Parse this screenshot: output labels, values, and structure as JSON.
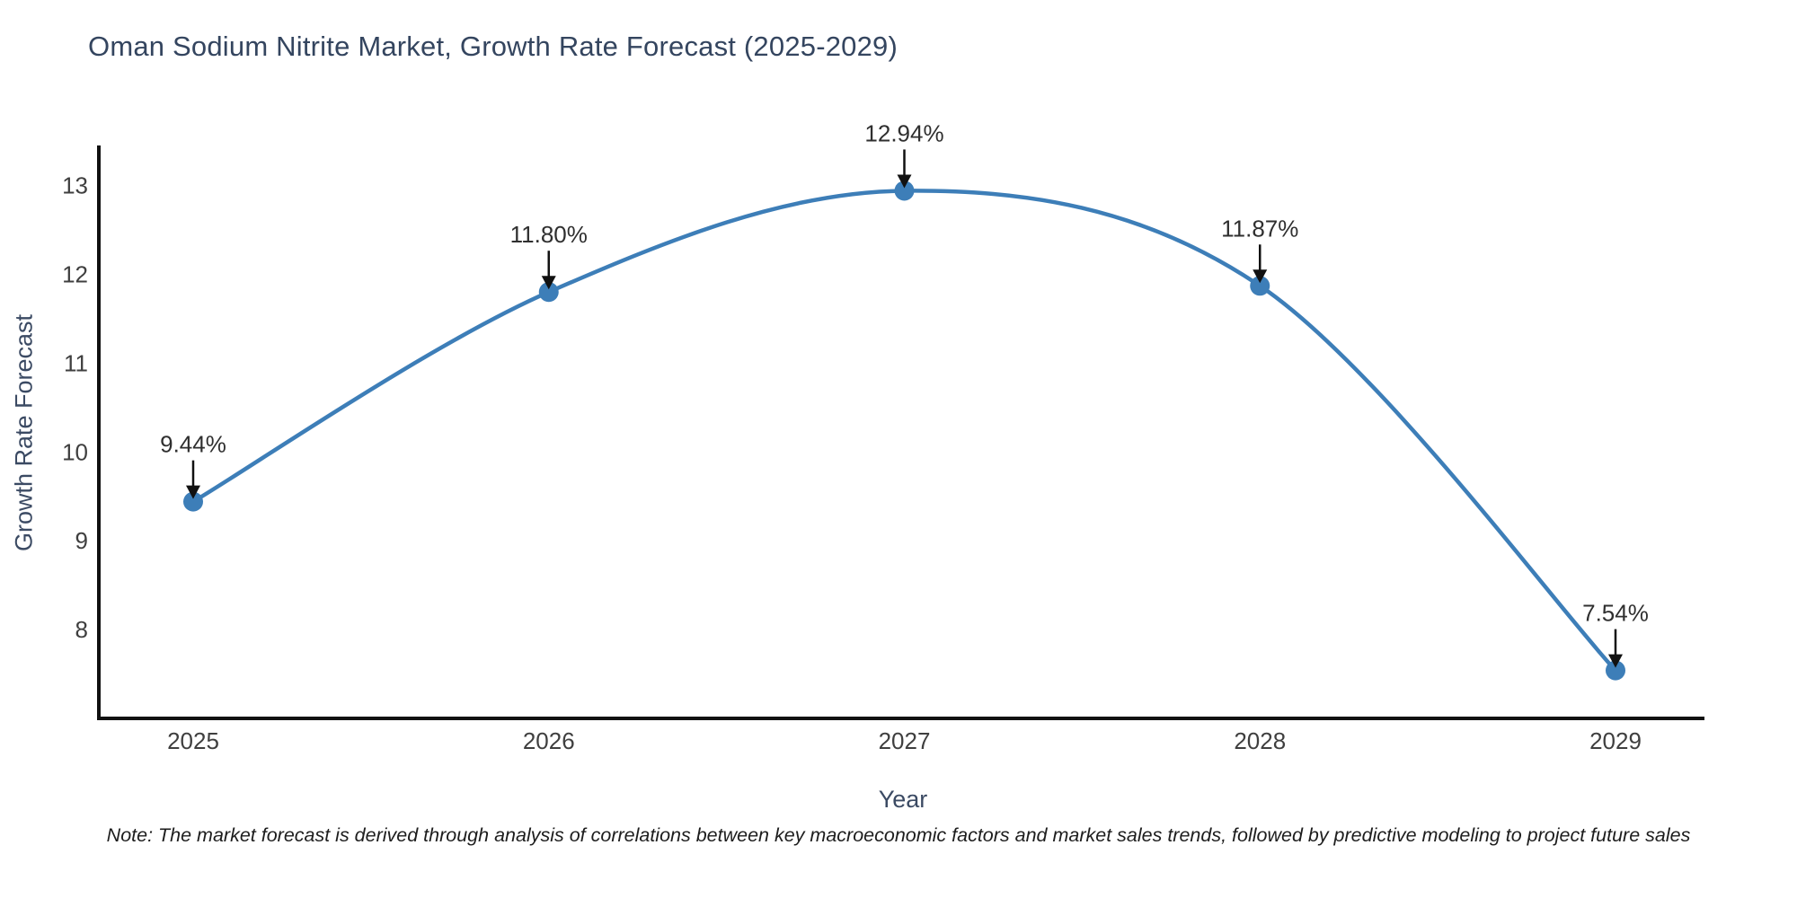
{
  "title": "Oman Sodium Nitrite Market, Growth Rate Forecast (2025-2029)",
  "footnote": "Note: The market forecast is derived through analysis of correlations between key macroeconomic factors and market sales trends, followed by predictive modeling to project future sales",
  "chart_data": {
    "type": "line",
    "title": "Oman Sodium Nitrite Market, Growth Rate Forecast (2025-2029)",
    "xlabel": "Year",
    "ylabel": "Growth Rate Forecast",
    "categories": [
      "2025",
      "2026",
      "2027",
      "2028",
      "2029"
    ],
    "values": [
      9.44,
      11.8,
      12.94,
      11.87,
      7.54
    ],
    "point_labels": [
      "9.44%",
      "11.80%",
      "12.94%",
      "11.87%",
      "7.54%"
    ],
    "yticks": [
      8,
      9,
      10,
      11,
      12,
      13
    ],
    "ylim": [
      7.0,
      13.45
    ],
    "grid": false,
    "legend_position": "none",
    "smooth": true,
    "annotations": "value labels with downward arrows at each point",
    "colors": {
      "line": "#3d7eb8",
      "marker": "#3d7eb8",
      "axis": "#111111",
      "tick_label": "#3f3f3f",
      "annotation_text": "#2f2f2f",
      "arrow": "#111111",
      "title": "#34455f",
      "axis_title": "#3b4a63",
      "background": "#ffffff"
    }
  }
}
